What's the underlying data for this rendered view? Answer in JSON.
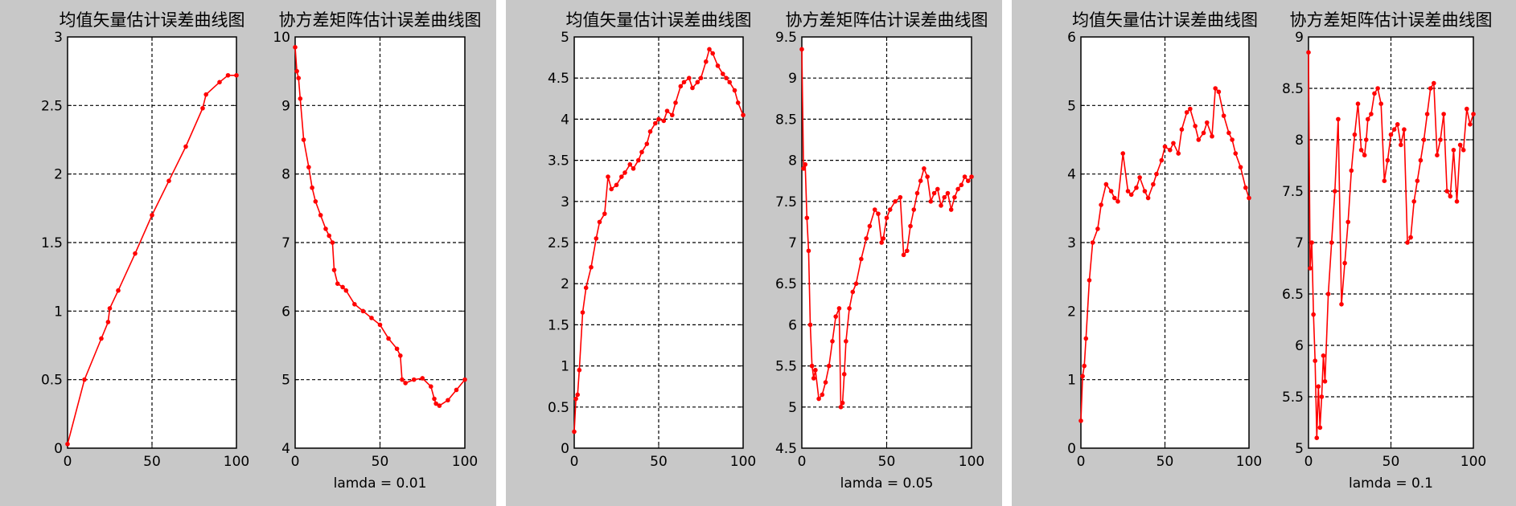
{
  "chart_data": [
    {
      "type": "line",
      "title": "均值矢量估计误差曲线图",
      "xlabel": "",
      "ylabel": "",
      "xlim": [
        0,
        100
      ],
      "ylim": [
        0,
        3
      ],
      "xticks": [
        0,
        50,
        100
      ],
      "yticks": [
        0,
        0.5,
        1,
        1.5,
        2,
        2.5,
        3
      ],
      "grid": true,
      "color": "#ff0000",
      "series": [
        {
          "x": [
            0,
            10,
            20,
            24,
            25,
            30,
            40,
            50,
            60,
            70,
            80,
            82,
            90,
            95,
            100
          ],
          "y": [
            0.03,
            0.5,
            0.8,
            0.92,
            1.02,
            1.15,
            1.42,
            1.7,
            1.95,
            2.2,
            2.48,
            2.58,
            2.67,
            2.72,
            2.72
          ]
        }
      ]
    },
    {
      "type": "line",
      "title": "协方差矩阵估计误差曲线图",
      "xlabel": "lamda = 0.01",
      "ylabel": "",
      "xlim": [
        0,
        100
      ],
      "ylim": [
        4,
        10
      ],
      "xticks": [
        0,
        50,
        100
      ],
      "yticks": [
        4,
        5,
        6,
        7,
        8,
        9,
        10
      ],
      "grid": true,
      "color": "#ff0000",
      "series": [
        {
          "x": [
            0,
            1,
            2,
            3,
            5,
            8,
            10,
            12,
            15,
            18,
            20,
            22,
            23,
            25,
            28,
            30,
            35,
            40,
            45,
            50,
            55,
            60,
            62,
            63,
            65,
            70,
            75,
            80,
            82,
            83,
            85,
            90,
            95,
            100
          ],
          "y": [
            9.85,
            9.5,
            9.4,
            9.1,
            8.5,
            8.1,
            7.8,
            7.6,
            7.4,
            7.2,
            7.1,
            7.0,
            6.6,
            6.4,
            6.35,
            6.3,
            6.1,
            6.0,
            5.9,
            5.8,
            5.6,
            5.45,
            5.35,
            5.0,
            4.95,
            5.0,
            5.02,
            4.9,
            4.72,
            4.65,
            4.62,
            4.7,
            4.85,
            5.0
          ]
        }
      ]
    },
    {
      "type": "line",
      "title": "均值矢量估计误差曲线图",
      "xlabel": "",
      "ylabel": "",
      "xlim": [
        0,
        100
      ],
      "ylim": [
        0,
        5
      ],
      "xticks": [
        0,
        50,
        100
      ],
      "yticks": [
        0,
        0.5,
        1,
        1.5,
        2,
        2.5,
        3,
        3.5,
        4,
        4.5,
        5
      ],
      "grid": true,
      "color": "#ff0000",
      "series": [
        {
          "x": [
            0,
            1,
            2,
            3,
            5,
            7,
            10,
            13,
            15,
            18,
            20,
            22,
            25,
            28,
            30,
            33,
            35,
            38,
            40,
            43,
            45,
            48,
            50,
            53,
            55,
            58,
            60,
            63,
            65,
            68,
            70,
            73,
            75,
            78,
            80,
            82,
            85,
            88,
            90,
            92,
            95,
            97,
            100
          ],
          "y": [
            0.2,
            0.6,
            0.65,
            0.95,
            1.65,
            1.95,
            2.2,
            2.55,
            2.75,
            2.85,
            3.3,
            3.15,
            3.2,
            3.3,
            3.35,
            3.45,
            3.4,
            3.5,
            3.6,
            3.7,
            3.85,
            3.95,
            4.0,
            3.98,
            4.1,
            4.05,
            4.2,
            4.4,
            4.45,
            4.5,
            4.38,
            4.45,
            4.5,
            4.7,
            4.85,
            4.8,
            4.65,
            4.55,
            4.5,
            4.45,
            4.35,
            4.2,
            4.05
          ]
        }
      ]
    },
    {
      "type": "line",
      "title": "协方差矩阵估计误差曲线图",
      "xlabel": "lamda = 0.05",
      "ylabel": "",
      "xlim": [
        0,
        100
      ],
      "ylim": [
        4.5,
        9.5
      ],
      "xticks": [
        0,
        50,
        100
      ],
      "yticks": [
        4.5,
        5,
        5.5,
        6,
        6.5,
        7,
        7.5,
        8,
        8.5,
        9,
        9.5
      ],
      "grid": true,
      "color": "#ff0000",
      "series": [
        {
          "x": [
            0,
            1,
            2,
            3,
            4,
            5,
            6,
            7,
            8,
            10,
            12,
            14,
            16,
            18,
            20,
            22,
            23,
            24,
            25,
            26,
            28,
            30,
            32,
            35,
            38,
            40,
            43,
            45,
            47,
            48,
            50,
            52,
            55,
            58,
            60,
            62,
            64,
            66,
            68,
            70,
            72,
            74,
            76,
            78,
            80,
            82,
            84,
            86,
            88,
            90,
            92,
            94,
            96,
            98,
            100
          ],
          "y": [
            9.35,
            7.9,
            7.95,
            7.3,
            6.9,
            6.0,
            5.5,
            5.35,
            5.45,
            5.1,
            5.15,
            5.3,
            5.5,
            5.8,
            6.1,
            6.2,
            5.0,
            5.05,
            5.4,
            5.8,
            6.2,
            6.4,
            6.5,
            6.8,
            7.05,
            7.2,
            7.4,
            7.35,
            7.0,
            7.05,
            7.3,
            7.4,
            7.5,
            7.55,
            6.85,
            6.9,
            7.2,
            7.4,
            7.6,
            7.75,
            7.9,
            7.8,
            7.5,
            7.6,
            7.65,
            7.45,
            7.55,
            7.6,
            7.4,
            7.55,
            7.65,
            7.7,
            7.8,
            7.75,
            7.8
          ]
        }
      ]
    },
    {
      "type": "line",
      "title": "均值矢量估计误差曲线图",
      "xlabel": "",
      "ylabel": "",
      "xlim": [
        0,
        100
      ],
      "ylim": [
        0,
        6
      ],
      "xticks": [
        0,
        50,
        100
      ],
      "yticks": [
        0,
        1,
        2,
        3,
        4,
        5,
        6
      ],
      "grid": true,
      "color": "#ff0000",
      "series": [
        {
          "x": [
            0,
            1,
            2,
            3,
            5,
            7,
            10,
            12,
            15,
            18,
            20,
            22,
            25,
            28,
            30,
            33,
            35,
            38,
            40,
            43,
            45,
            48,
            50,
            53,
            55,
            58,
            60,
            63,
            65,
            68,
            70,
            73,
            75,
            78,
            80,
            82,
            85,
            88,
            90,
            92,
            95,
            98,
            100
          ],
          "y": [
            0.4,
            1.05,
            1.2,
            1.6,
            2.45,
            3.0,
            3.2,
            3.55,
            3.85,
            3.75,
            3.65,
            3.6,
            4.3,
            3.75,
            3.7,
            3.8,
            3.95,
            3.75,
            3.65,
            3.85,
            4.0,
            4.2,
            4.4,
            4.35,
            4.45,
            4.3,
            4.65,
            4.9,
            4.95,
            4.7,
            4.5,
            4.6,
            4.75,
            4.55,
            5.25,
            5.2,
            4.85,
            4.6,
            4.5,
            4.3,
            4.1,
            3.8,
            3.65
          ]
        }
      ]
    },
    {
      "type": "line",
      "title": "协方差矩阵估计误差曲线图",
      "xlabel": "lamda = 0.1",
      "ylabel": "",
      "xlim": [
        0,
        100
      ],
      "ylim": [
        5,
        9
      ],
      "xticks": [
        0,
        50,
        100
      ],
      "yticks": [
        5,
        5.5,
        6,
        6.5,
        7,
        7.5,
        8,
        8.5,
        9
      ],
      "grid": true,
      "color": "#ff0000",
      "series": [
        {
          "x": [
            0,
            1,
            2,
            3,
            4,
            5,
            6,
            7,
            8,
            9,
            10,
            12,
            14,
            16,
            18,
            20,
            22,
            24,
            26,
            28,
            30,
            32,
            34,
            35,
            36,
            38,
            40,
            42,
            44,
            46,
            48,
            50,
            52,
            54,
            56,
            58,
            60,
            62,
            64,
            66,
            68,
            70,
            72,
            74,
            76,
            78,
            80,
            82,
            84,
            86,
            88,
            90,
            92,
            94,
            96,
            98,
            100
          ],
          "y": [
            8.85,
            6.75,
            7.0,
            6.3,
            5.85,
            5.1,
            5.6,
            5.2,
            5.5,
            5.9,
            5.65,
            6.5,
            7.0,
            7.5,
            8.2,
            6.4,
            6.8,
            7.2,
            7.7,
            8.05,
            8.35,
            7.9,
            7.85,
            8.0,
            8.2,
            8.25,
            8.45,
            8.5,
            8.35,
            7.6,
            7.8,
            8.05,
            8.1,
            8.15,
            7.95,
            8.1,
            7.0,
            7.05,
            7.4,
            7.6,
            7.8,
            8.0,
            8.25,
            8.5,
            8.55,
            7.85,
            8.0,
            8.25,
            7.5,
            7.45,
            7.9,
            7.4,
            7.95,
            7.9,
            8.3,
            8.15,
            8.25
          ]
        }
      ]
    }
  ]
}
